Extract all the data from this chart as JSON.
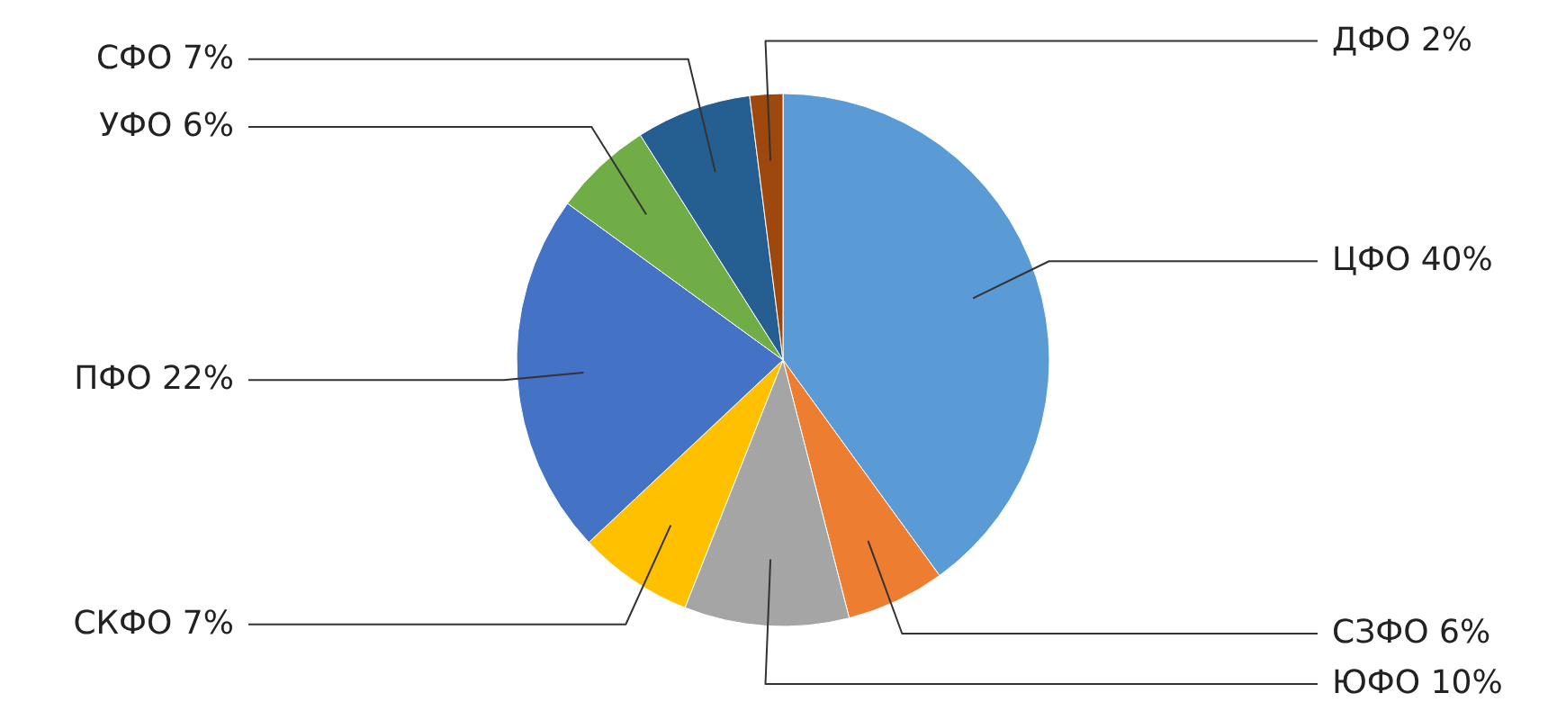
{
  "chart_data": {
    "type": "pie",
    "categories": [
      "ЦФО",
      "СЗФО",
      "ЮФО",
      "СКФО",
      "ПФО",
      "УФО",
      "СФО",
      "ДФО"
    ],
    "values": [
      40,
      6,
      10,
      7,
      22,
      6,
      7,
      2
    ],
    "value_labels": [
      "40%",
      "6%",
      "10%",
      "7%",
      "22%",
      "6%",
      "7%",
      "2%"
    ],
    "colors": [
      "#5b9bd5",
      "#ed7d31",
      "#a5a5a5",
      "#ffc000",
      "#4472c4",
      "#70ad47",
      "#255e91",
      "#9e480e"
    ]
  }
}
